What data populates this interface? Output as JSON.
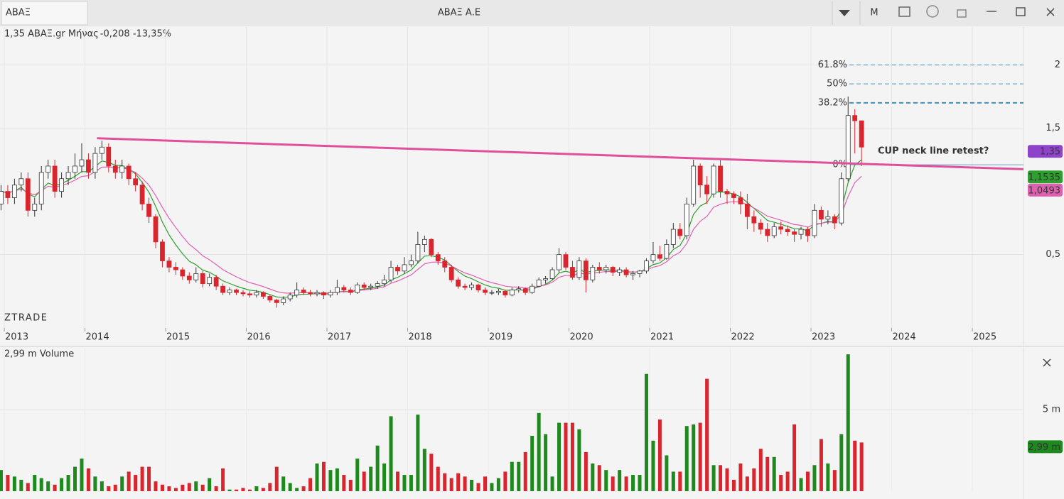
{
  "header": {
    "symbol": "ΑΒΑΞ",
    "title": "ΑΒΑΞ Α.Ε",
    "period": "M"
  },
  "chart_data": [
    {
      "type": "candlestick",
      "legend": {
        "price": "1,35 ΑΒΑΞ.gr Μήνας",
        "change": "-0,208 -13,35%"
      },
      "watermark": "ZTRADE",
      "up_color": "#ffffff",
      "down_color": "#d9262e",
      "xlim": [
        2012.947,
        2025.634
      ],
      "xticks": [
        2013,
        2014,
        2015,
        2016,
        2017,
        2018,
        2019,
        2020,
        2021,
        2022,
        2023,
        2024,
        2025
      ],
      "ylim": [
        -0.08,
        2.3
      ],
      "yticks": [
        {
          "value": 0.5,
          "label": "0,5"
        },
        {
          "value": 1.5,
          "label": "1,5"
        },
        2
      ],
      "grid": true,
      "ohlc": [
        [
          0.9,
          1.05,
          0.85,
          1.0
        ],
        [
          1.0,
          1.05,
          0.9,
          0.95
        ],
        [
          0.95,
          1.1,
          0.9,
          1.05
        ],
        [
          1.05,
          1.15,
          1.0,
          1.1
        ],
        [
          1.1,
          1.15,
          0.8,
          0.85
        ],
        [
          0.85,
          0.95,
          0.8,
          0.9
        ],
        [
          0.9,
          1.2,
          0.85,
          1.15
        ],
        [
          1.15,
          1.25,
          1.1,
          1.2
        ],
        [
          1.2,
          1.25,
          0.95,
          1.0
        ],
        [
          1.0,
          1.15,
          0.95,
          1.1
        ],
        [
          1.1,
          1.2,
          1.05,
          1.15
        ],
        [
          1.15,
          1.3,
          1.1,
          1.2
        ],
        [
          1.2,
          1.38,
          1.15,
          1.25
        ],
        [
          1.25,
          1.3,
          1.1,
          1.15
        ],
        [
          1.15,
          1.35,
          1.1,
          1.3
        ],
        [
          1.3,
          1.4,
          1.25,
          1.35
        ],
        [
          1.35,
          1.38,
          1.15,
          1.2
        ],
        [
          1.2,
          1.25,
          1.1,
          1.15
        ],
        [
          1.15,
          1.25,
          1.1,
          1.2
        ],
        [
          1.2,
          1.22,
          1.05,
          1.1
        ],
        [
          1.1,
          1.15,
          1.0,
          1.05
        ],
        [
          1.05,
          1.08,
          0.85,
          0.9
        ],
        [
          0.9,
          0.95,
          0.75,
          0.8
        ],
        [
          0.8,
          0.82,
          0.55,
          0.6
        ],
        [
          0.6,
          0.62,
          0.4,
          0.45
        ],
        [
          0.45,
          0.48,
          0.36,
          0.4
        ],
        [
          0.4,
          0.44,
          0.34,
          0.38
        ],
        [
          0.38,
          0.4,
          0.3,
          0.33
        ],
        [
          0.33,
          0.36,
          0.27,
          0.3
        ],
        [
          0.3,
          0.4,
          0.28,
          0.35
        ],
        [
          0.35,
          0.37,
          0.24,
          0.27
        ],
        [
          0.27,
          0.35,
          0.25,
          0.32
        ],
        [
          0.32,
          0.34,
          0.22,
          0.25
        ],
        [
          0.25,
          0.27,
          0.18,
          0.2
        ],
        [
          0.2,
          0.24,
          0.18,
          0.22
        ],
        [
          0.22,
          0.23,
          0.18,
          0.2
        ],
        [
          0.2,
          0.22,
          0.17,
          0.19
        ],
        [
          0.19,
          0.21,
          0.16,
          0.18
        ],
        [
          0.18,
          0.22,
          0.16,
          0.2
        ],
        [
          0.2,
          0.21,
          0.15,
          0.17
        ],
        [
          0.17,
          0.18,
          0.12,
          0.14
        ],
        [
          0.14,
          0.15,
          0.08,
          0.12
        ],
        [
          0.12,
          0.17,
          0.1,
          0.15
        ],
        [
          0.15,
          0.2,
          0.13,
          0.18
        ],
        [
          0.18,
          0.28,
          0.16,
          0.22
        ],
        [
          0.22,
          0.24,
          0.18,
          0.2
        ],
        [
          0.2,
          0.22,
          0.17,
          0.19
        ],
        [
          0.19,
          0.22,
          0.17,
          0.2
        ],
        [
          0.2,
          0.21,
          0.15,
          0.18
        ],
        [
          0.18,
          0.22,
          0.16,
          0.2
        ],
        [
          0.2,
          0.3,
          0.18,
          0.24
        ],
        [
          0.24,
          0.26,
          0.2,
          0.22
        ],
        [
          0.22,
          0.24,
          0.18,
          0.2
        ],
        [
          0.2,
          0.28,
          0.19,
          0.26
        ],
        [
          0.26,
          0.28,
          0.22,
          0.24
        ],
        [
          0.24,
          0.27,
          0.22,
          0.25
        ],
        [
          0.25,
          0.29,
          0.23,
          0.27
        ],
        [
          0.27,
          0.34,
          0.25,
          0.3
        ],
        [
          0.3,
          0.45,
          0.28,
          0.4
        ],
        [
          0.4,
          0.42,
          0.34,
          0.37
        ],
        [
          0.37,
          0.48,
          0.35,
          0.42
        ],
        [
          0.42,
          0.5,
          0.4,
          0.45
        ],
        [
          0.45,
          0.68,
          0.43,
          0.58
        ],
        [
          0.58,
          0.65,
          0.52,
          0.62
        ],
        [
          0.62,
          0.63,
          0.48,
          0.5
        ],
        [
          0.5,
          0.52,
          0.42,
          0.45
        ],
        [
          0.45,
          0.48,
          0.36,
          0.4
        ],
        [
          0.4,
          0.42,
          0.28,
          0.3
        ],
        [
          0.3,
          0.32,
          0.23,
          0.25
        ],
        [
          0.25,
          0.27,
          0.22,
          0.24
        ],
        [
          0.24,
          0.28,
          0.22,
          0.26
        ],
        [
          0.26,
          0.27,
          0.2,
          0.22
        ],
        [
          0.22,
          0.24,
          0.18,
          0.2
        ],
        [
          0.2,
          0.22,
          0.18,
          0.2
        ],
        [
          0.2,
          0.23,
          0.18,
          0.21
        ],
        [
          0.21,
          0.22,
          0.16,
          0.18
        ],
        [
          0.18,
          0.24,
          0.17,
          0.22
        ],
        [
          0.22,
          0.25,
          0.2,
          0.23
        ],
        [
          0.23,
          0.24,
          0.18,
          0.2
        ],
        [
          0.2,
          0.27,
          0.19,
          0.25
        ],
        [
          0.25,
          0.32,
          0.24,
          0.3
        ],
        [
          0.3,
          0.33,
          0.27,
          0.31
        ],
        [
          0.31,
          0.4,
          0.3,
          0.38
        ],
        [
          0.38,
          0.55,
          0.36,
          0.5
        ],
        [
          0.5,
          0.52,
          0.38,
          0.4
        ],
        [
          0.4,
          0.45,
          0.3,
          0.32
        ],
        [
          0.32,
          0.48,
          0.3,
          0.45
        ],
        [
          0.45,
          0.47,
          0.2,
          0.3
        ],
        [
          0.3,
          0.42,
          0.28,
          0.4
        ],
        [
          0.4,
          0.44,
          0.35,
          0.38
        ],
        [
          0.38,
          0.42,
          0.35,
          0.4
        ],
        [
          0.4,
          0.41,
          0.33,
          0.36
        ],
        [
          0.36,
          0.4,
          0.33,
          0.38
        ],
        [
          0.38,
          0.4,
          0.32,
          0.34
        ],
        [
          0.34,
          0.37,
          0.3,
          0.35
        ],
        [
          0.35,
          0.38,
          0.32,
          0.37
        ],
        [
          0.37,
          0.47,
          0.35,
          0.45
        ],
        [
          0.45,
          0.6,
          0.43,
          0.5
        ],
        [
          0.5,
          0.57,
          0.45,
          0.47
        ],
        [
          0.47,
          0.62,
          0.46,
          0.58
        ],
        [
          0.58,
          0.75,
          0.55,
          0.7
        ],
        [
          0.7,
          0.75,
          0.62,
          0.65
        ],
        [
          0.65,
          0.95,
          0.62,
          0.9
        ],
        [
          0.9,
          1.25,
          0.88,
          1.2
        ],
        [
          1.2,
          1.22,
          0.95,
          1.05
        ],
        [
          1.05,
          1.12,
          0.9,
          0.98
        ],
        [
          0.98,
          1.22,
          0.95,
          1.2
        ],
        [
          1.2,
          1.25,
          0.95,
          1.0
        ],
        [
          1.0,
          1.02,
          0.9,
          0.98
        ],
        [
          0.98,
          1.0,
          0.9,
          0.95
        ],
        [
          0.95,
          1.0,
          0.82,
          0.9
        ],
        [
          0.9,
          0.98,
          0.7,
          0.8
        ],
        [
          0.8,
          0.85,
          0.68,
          0.75
        ],
        [
          0.75,
          0.78,
          0.66,
          0.7
        ],
        [
          0.7,
          0.75,
          0.6,
          0.65
        ],
        [
          0.65,
          0.75,
          0.63,
          0.72
        ],
        [
          0.72,
          0.76,
          0.66,
          0.7
        ],
        [
          0.7,
          0.73,
          0.65,
          0.68
        ],
        [
          0.68,
          0.7,
          0.6,
          0.66
        ],
        [
          0.66,
          0.72,
          0.62,
          0.7
        ],
        [
          0.7,
          0.72,
          0.6,
          0.65
        ],
        [
          0.65,
          0.9,
          0.63,
          0.85
        ],
        [
          0.85,
          0.88,
          0.72,
          0.78
        ],
        [
          0.78,
          0.85,
          0.74,
          0.8
        ],
        [
          0.8,
          0.82,
          0.7,
          0.75
        ],
        [
          0.75,
          1.15,
          0.73,
          1.1
        ],
        [
          1.1,
          1.75,
          1.08,
          1.6
        ],
        [
          1.6,
          1.65,
          1.3,
          1.558
        ],
        [
          1.558,
          1.56,
          1.2,
          1.35
        ]
      ],
      "moving_averages": [
        {
          "color": "#2e9e2e",
          "last": {
            "value": 1.1535,
            "label": "1,1535"
          }
        },
        {
          "color": "#e060b0",
          "last": {
            "value": 1.0493,
            "label": "1,0493"
          }
        }
      ],
      "last_price": {
        "value": 1.35,
        "label": "1,35",
        "color": "#8e44c9"
      },
      "fib_levels": [
        {
          "value": 2.0,
          "label": "61.8%"
        },
        {
          "value": 1.85,
          "label": "50%"
        },
        {
          "value": 1.7,
          "label": "38.2%"
        },
        {
          "value": 1.21,
          "label": "0%"
        }
      ],
      "trendline": {
        "from": [
          2014.15,
          1.42
        ],
        "to": [
          2025.634,
          1.175
        ],
        "color": "#e0509a"
      },
      "annotation": "CUP neck line retest?"
    },
    {
      "type": "bar",
      "title": "2,99 m Volume",
      "ylim": [
        0,
        8.8
      ],
      "yticks": [
        {
          "value": 5,
          "label": "5 m"
        }
      ],
      "up_color": "#1e8a1e",
      "down_color": "#d9262e",
      "values": [
        1.3,
        1.0,
        0.9,
        0.7,
        0.5,
        1.0,
        0.8,
        0.6,
        0.4,
        0.8,
        1.0,
        1.5,
        2.0,
        1.4,
        0.9,
        0.6,
        0.3,
        0.4,
        0.9,
        1.2,
        1.0,
        1.5,
        1.5,
        0.6,
        0.4,
        0.3,
        0.2,
        0.4,
        0.5,
        0.6,
        0.4,
        0.8,
        0.3,
        1.4,
        0.1,
        0.1,
        0.2,
        0.1,
        0.3,
        0.2,
        0.5,
        1.5,
        0.9,
        0.5,
        0.2,
        0.3,
        0.8,
        1.7,
        1.8,
        1.3,
        1.4,
        1.0,
        0.7,
        2.0,
        1.2,
        1.5,
        2.8,
        1.7,
        4.6,
        1.2,
        1.0,
        1.0,
        4.7,
        2.6,
        2.3,
        1.5,
        1.1,
        0.8,
        1.1,
        0.9,
        0.7,
        0.5,
        0.9,
        0.5,
        0.8,
        1.2,
        1.8,
        1.8,
        2.4,
        3.4,
        4.8,
        3.5,
        0.9,
        4.2,
        4.2,
        4.2,
        3.8,
        2.4,
        1.7,
        1.6,
        1.3,
        0.9,
        1.3,
        0.9,
        1.0,
        1.0,
        7.2,
        3.1,
        4.4,
        2.2,
        1.2,
        1.2,
        4.0,
        4.1,
        4.2,
        6.9,
        1.6,
        1.6,
        1.4,
        0.7,
        1.7,
        0.9,
        1.4,
        2.6,
        2.1,
        2.1,
        1.0,
        1.2,
        4.1,
        0.8,
        1.2,
        1.6,
        3.2,
        1.7,
        1.3,
        3.5,
        8.4,
        3.1,
        2.99
      ],
      "last_label": {
        "value": 2.99,
        "label": "2,99 m"
      }
    }
  ]
}
